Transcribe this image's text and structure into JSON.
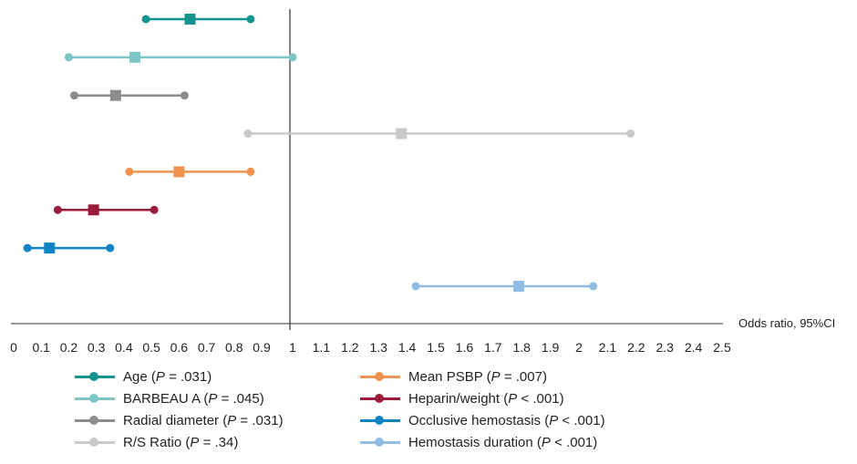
{
  "chart_data": {
    "type": "forest",
    "xlabel": "Odds ratio, 95%CI",
    "xlim": [
      0,
      2.5
    ],
    "reference_line": 1,
    "x_ticks": [
      "0",
      "0.1",
      "0.2",
      "0.3",
      "0.4",
      "0.5",
      "0.6",
      "0.7",
      "0.8",
      "0.9",
      "1",
      "1.1",
      "1.2",
      "1.3",
      "1.4",
      "1.5",
      "1.6",
      "1.7",
      "1.8",
      "1.9",
      "2",
      "2.1",
      "2.2",
      "2.3",
      "2.4",
      "2.5"
    ],
    "series": [
      {
        "name": "Age",
        "p_label": "P",
        "p_rel": "=",
        "p_value": ".031",
        "color": "#14948f",
        "or": 0.64,
        "low": 0.48,
        "high": 0.86
      },
      {
        "name": "BARBEAU A",
        "p_label": "P",
        "p_rel": "=",
        "p_value": ".045",
        "color": "#7cc6c6",
        "or": 0.44,
        "low": 0.2,
        "high": 1.0
      },
      {
        "name": "Radial diameter",
        "p_label": "P",
        "p_rel": "=",
        "p_value": ".031",
        "color": "#8c8c8c",
        "or": 0.37,
        "low": 0.22,
        "high": 0.62
      },
      {
        "name": "R/S Ratio",
        "p_label": "P",
        "p_rel": "=",
        "p_value": ".34",
        "color": "#c9c9c9",
        "or": 1.38,
        "low": 0.85,
        "high": 2.18
      },
      {
        "name": "Mean PSBP",
        "p_label": "P",
        "p_rel": "=",
        "p_value": ".007",
        "color": "#f0924f",
        "or": 0.6,
        "low": 0.42,
        "high": 0.86
      },
      {
        "name": "Heparin/weight",
        "p_label": "P",
        "p_rel": "<",
        "p_value": ".001",
        "color": "#9b1b3b",
        "or": 0.29,
        "low": 0.16,
        "high": 0.51
      },
      {
        "name": "Occlusive hemostasis",
        "p_label": "P",
        "p_rel": "<",
        "p_value": ".001",
        "color": "#1083c4",
        "or": 0.13,
        "low": 0.05,
        "high": 0.35
      },
      {
        "name": "Hemostasis duration",
        "p_label": "P",
        "p_rel": "<",
        "p_value": ".001",
        "color": "#8fbde6",
        "or": 1.79,
        "low": 1.43,
        "high": 2.05
      }
    ]
  }
}
